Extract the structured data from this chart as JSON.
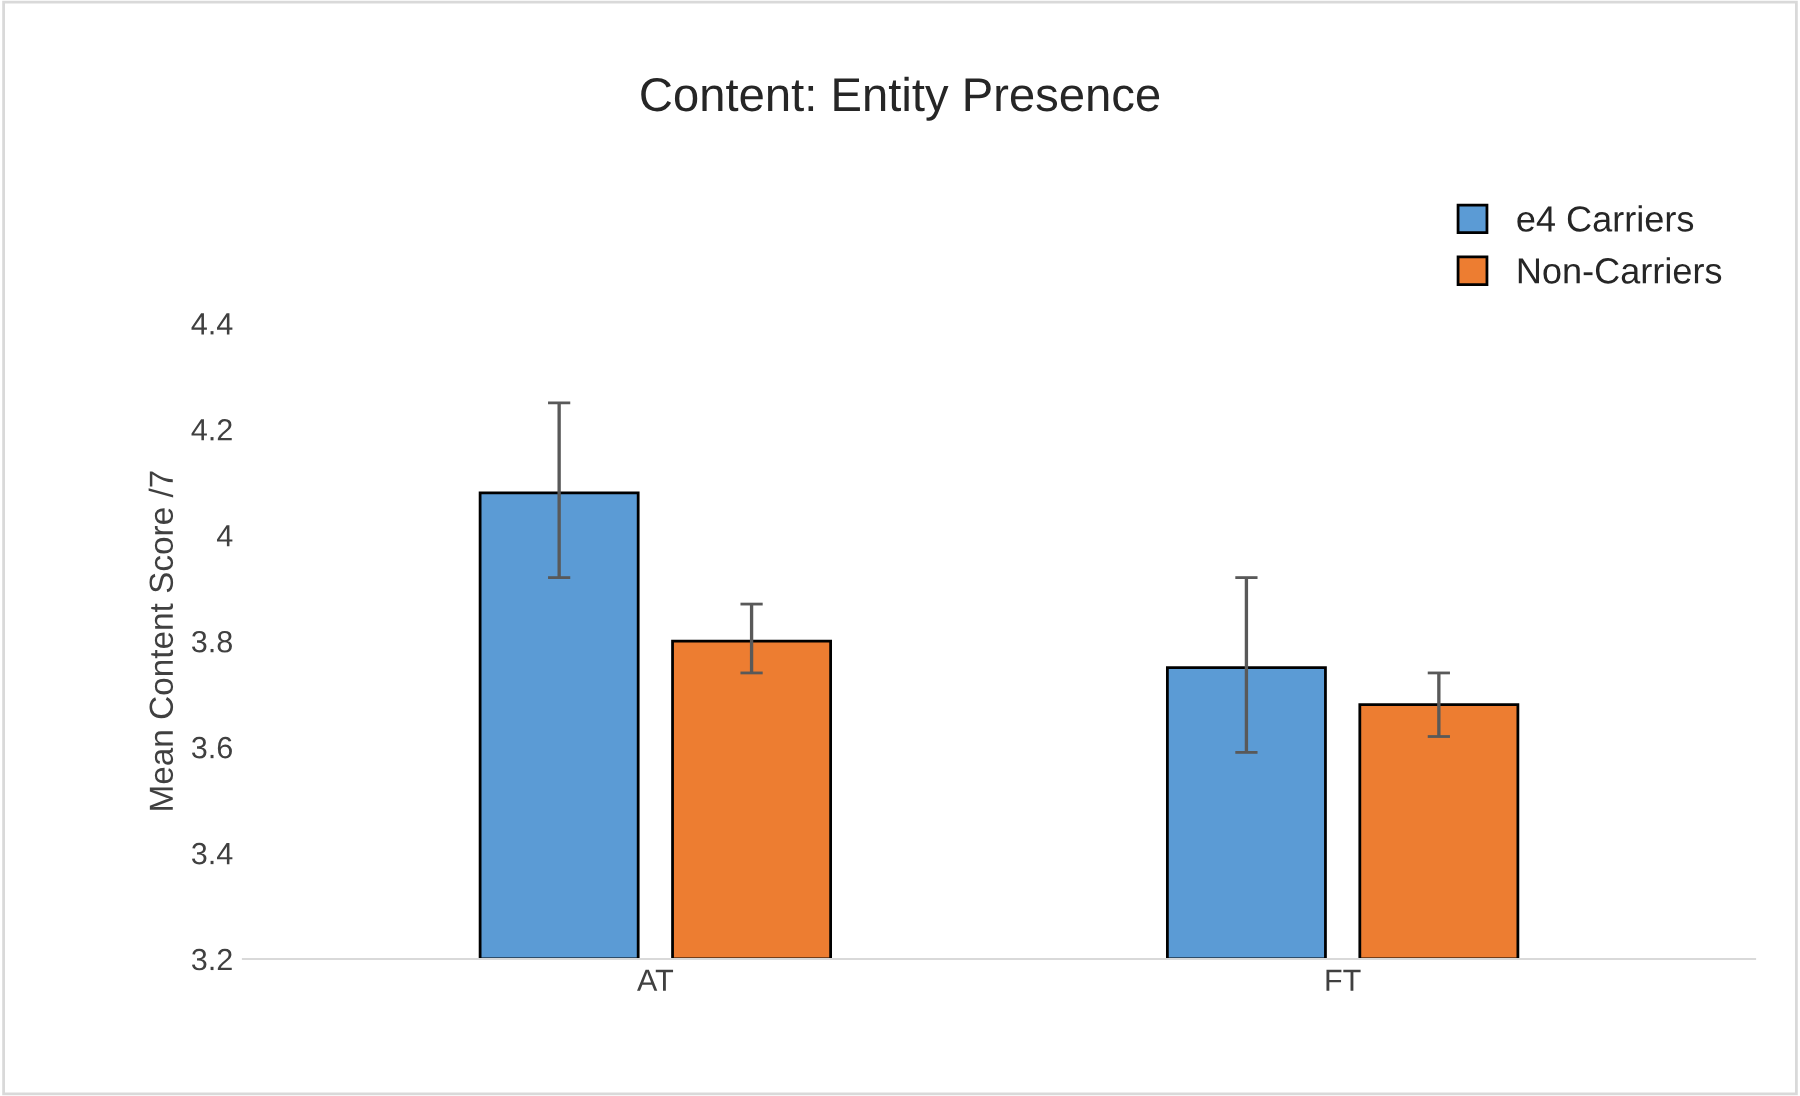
{
  "chart_data": {
    "type": "bar",
    "title": "Content: Entity Presence",
    "ylabel": "Mean Content Score /7",
    "categories": [
      "AT",
      "FT"
    ],
    "series": [
      {
        "name": "e4 Carriers",
        "color": "#5b9bd5",
        "values": [
          4.08,
          3.75
        ],
        "errors": [
          [
            3.92,
            4.25
          ],
          [
            3.59,
            3.92
          ]
        ]
      },
      {
        "name": "Non-Carriers",
        "color": "#ed7d31",
        "values": [
          3.8,
          3.68
        ],
        "errors": [
          [
            3.74,
            3.87
          ],
          [
            3.62,
            3.74
          ]
        ]
      }
    ],
    "ylim": [
      3.2,
      4.4
    ],
    "yticks": [
      3.2,
      3.4,
      3.6,
      3.8,
      4,
      4.2,
      4.4
    ],
    "grid": false,
    "legend": "top right"
  }
}
